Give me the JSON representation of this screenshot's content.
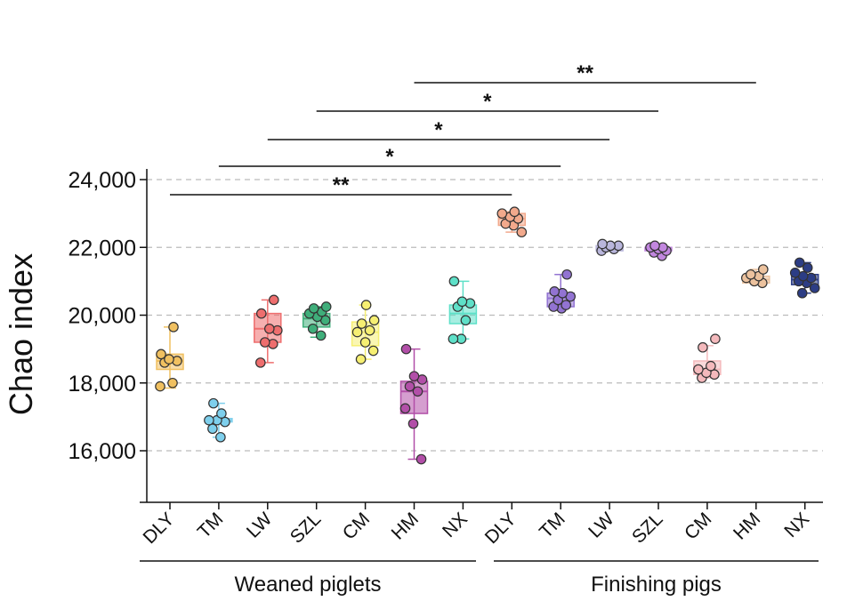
{
  "chart_data": {
    "type": "box",
    "ylabel": "Chao index",
    "ylim": [
      14800,
      24800
    ],
    "y_ticks": [
      16000,
      18000,
      20000,
      22000,
      24000
    ],
    "y_tick_labels": [
      "16,000",
      "18,000",
      "20,000",
      "22,000",
      "24,000"
    ],
    "grid": "dashed horizontal lines at tick values",
    "groups": [
      {
        "label": "Weaned piglets",
        "categories": [
          "DLY",
          "TM",
          "LW",
          "SZL",
          "CM",
          "HM",
          "NX"
        ]
      },
      {
        "label": "Finishing pigs",
        "categories": [
          "DLY",
          "TM",
          "LW",
          "SZL",
          "CM",
          "HM",
          "NX"
        ]
      }
    ],
    "series": [
      {
        "category": "DLY",
        "group": "Weaned piglets",
        "color": "#f0c060",
        "q1": 18400,
        "median": 18650,
        "q3": 18850,
        "whisker_low": 17850,
        "whisker_high": 19650,
        "points": [
          17900,
          18000,
          18600,
          18650,
          18700,
          18850,
          19650
        ]
      },
      {
        "category": "TM",
        "group": "Weaned piglets",
        "color": "#7ecfec",
        "q1": 16850,
        "median": 16900,
        "q3": 16950,
        "whisker_low": 16400,
        "whisker_high": 17400,
        "points": [
          16400,
          16650,
          16850,
          16900,
          16900,
          17100,
          17400
        ]
      },
      {
        "category": "LW",
        "group": "Weaned piglets",
        "color": "#ee6e6e",
        "q1": 19200,
        "median": 19600,
        "q3": 20050,
        "whisker_low": 18600,
        "whisker_high": 20450,
        "points": [
          18600,
          19150,
          19200,
          19550,
          19600,
          20050,
          20450
        ]
      },
      {
        "category": "SZL",
        "group": "Weaned piglets",
        "color": "#3fae7a",
        "q1": 19650,
        "median": 19900,
        "q3": 20050,
        "whisker_low": 19350,
        "whisker_high": 20250,
        "points": [
          19400,
          19600,
          19850,
          19950,
          20050,
          20100,
          20200,
          20250
        ]
      },
      {
        "category": "CM",
        "group": "Weaned piglets",
        "color": "#f6ef72",
        "q1": 19100,
        "median": 19500,
        "q3": 19800,
        "whisker_low": 18700,
        "whisker_high": 20300,
        "points": [
          18700,
          18950,
          19200,
          19500,
          19550,
          19750,
          19850,
          20300
        ]
      },
      {
        "category": "HM",
        "group": "Weaned piglets",
        "color": "#b24fa8",
        "q1": 17100,
        "median": 17750,
        "q3": 18050,
        "whisker_low": 15750,
        "whisker_high": 19000,
        "points": [
          15750,
          16800,
          17250,
          17750,
          17900,
          18100,
          18200,
          19000
        ]
      },
      {
        "category": "NX",
        "group": "Weaned piglets",
        "color": "#5ee0c8",
        "q1": 19750,
        "median": 20050,
        "q3": 20300,
        "whisker_low": 19300,
        "whisker_high": 21000,
        "points": [
          19300,
          19300,
          19850,
          20250,
          20350,
          20400,
          21000
        ]
      },
      {
        "category": "DLY",
        "group": "Finishing pigs",
        "color": "#f2a98c",
        "q1": 22650,
        "median": 22850,
        "q3": 23000,
        "whisker_low": 22450,
        "whisker_high": 23050,
        "points": [
          22450,
          22650,
          22700,
          22850,
          22900,
          23000,
          23050
        ]
      },
      {
        "category": "TM",
        "group": "Finishing pigs",
        "color": "#9273d2",
        "q1": 20250,
        "median": 20500,
        "q3": 20650,
        "whisker_low": 20200,
        "whisker_high": 21200,
        "points": [
          20200,
          20250,
          20300,
          20450,
          20550,
          20650,
          20700,
          21200
        ]
      },
      {
        "category": "LW",
        "group": "Finishing pigs",
        "color": "#b9b6dc",
        "q1": 21900,
        "median": 22000,
        "q3": 22050,
        "whisker_low": 21900,
        "whisker_high": 22100,
        "points": [
          21900,
          21950,
          22000,
          22050,
          22050,
          22100
        ]
      },
      {
        "category": "SZL",
        "group": "Finishing pigs",
        "color": "#c287df",
        "q1": 21900,
        "median": 21950,
        "q3": 22000,
        "whisker_low": 21750,
        "whisker_high": 22050,
        "points": [
          21750,
          21850,
          21900,
          21950,
          22000,
          22000,
          22050
        ]
      },
      {
        "category": "CM",
        "group": "Finishing pigs",
        "color": "#f4b9bc",
        "q1": 18250,
        "median": 18400,
        "q3": 18650,
        "whisker_low": 18150,
        "whisker_high": 19100,
        "points": [
          18150,
          18250,
          18300,
          18400,
          18500,
          19050,
          19300
        ]
      },
      {
        "category": "HM",
        "group": "Finishing pigs",
        "color": "#ecc29e",
        "q1": 20950,
        "median": 21050,
        "q3": 21150,
        "whisker_low": 20950,
        "whisker_high": 21350,
        "points": [
          20950,
          21000,
          21100,
          21150,
          21200,
          21350
        ]
      },
      {
        "category": "NX",
        "group": "Finishing pigs",
        "color": "#2c3d85",
        "q1": 20900,
        "median": 21050,
        "q3": 21200,
        "whisker_low": 20650,
        "whisker_high": 21550,
        "points": [
          20650,
          20800,
          20950,
          21000,
          21100,
          21150,
          21250,
          21400,
          21550
        ]
      }
    ],
    "significance": [
      {
        "from": 0,
        "to": 7,
        "label": "**"
      },
      {
        "from": 1,
        "to": 8,
        "label": "*"
      },
      {
        "from": 2,
        "to": 9,
        "label": "*"
      },
      {
        "from": 3,
        "to": 10,
        "label": "*"
      },
      {
        "from": 5,
        "to": 12,
        "label": "**"
      }
    ]
  }
}
